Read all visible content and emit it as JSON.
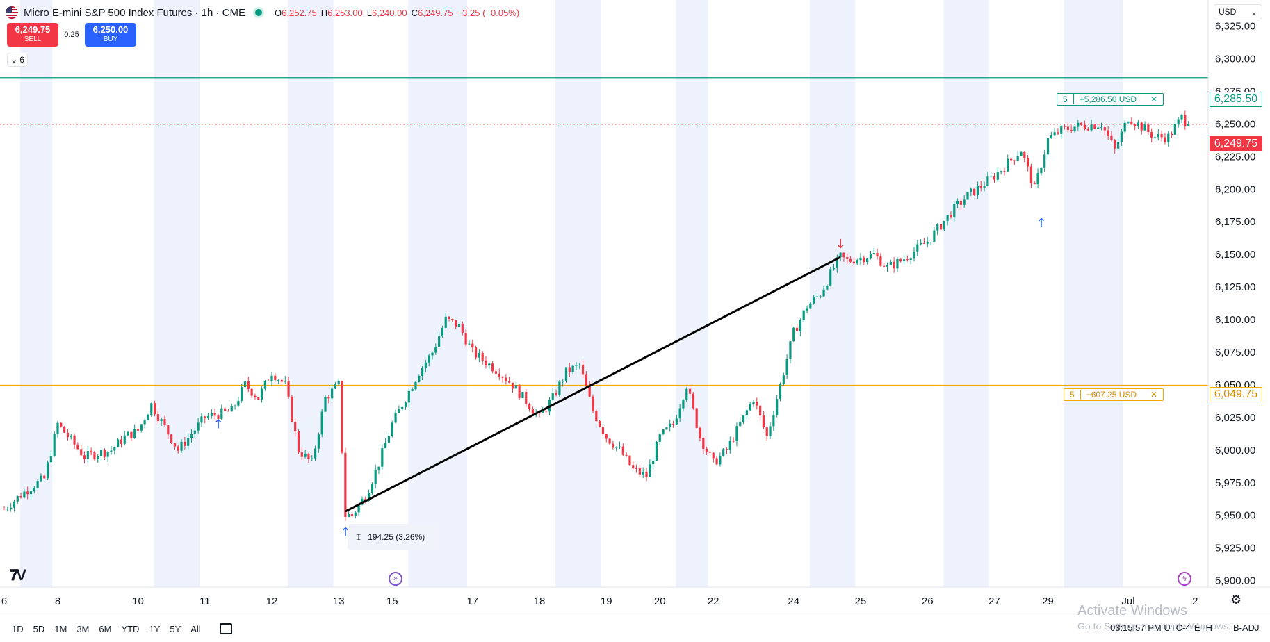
{
  "header": {
    "title": "Micro E-mini S&P 500 Index Futures · 1h · CME",
    "ohlc": [
      {
        "k": "O",
        "v": "6,252.75"
      },
      {
        "k": "H",
        "v": "6,253.00"
      },
      {
        "k": "L",
        "v": "6,240.00"
      },
      {
        "k": "C",
        "v": "6,249.75"
      },
      {
        "k": "",
        "v": "−3.25 (−0.05%)"
      }
    ]
  },
  "trade": {
    "sell_price": "6,249.75",
    "sell_label": "SELL",
    "spread": "0.25",
    "buy_price": "6,250.00",
    "buy_label": "BUY",
    "collapse_count": "6"
  },
  "currency": "USD",
  "orders": {
    "take_profit": {
      "qty": "5",
      "pnl": "+5,286.50 USD",
      "price": "6,285.50",
      "close": "✕"
    },
    "stop_loss": {
      "qty": "5",
      "pnl": "−607.25 USD",
      "price": "6,049.75",
      "close": "✕"
    },
    "last_price": "6,249.75"
  },
  "measure": {
    "text": "194.25 (3.26%)"
  },
  "bottom": {
    "ranges": [
      "1D",
      "5D",
      "1M",
      "3M",
      "6M",
      "YTD",
      "1Y",
      "5Y",
      "All"
    ],
    "clock": "03:15:57 PM UTC-4",
    "eth": "ETH",
    "badj": "B-ADJ"
  },
  "watermark": {
    "line1": "Activate Windows",
    "line2": "Go to Settings to activate Windows."
  },
  "colors": {
    "up": "#089981",
    "down": "#f23645",
    "tp": "#089981",
    "sl": "#f2a900",
    "session": "#eef2fd"
  },
  "chart_data": {
    "type": "candlestick",
    "symbol": "MES",
    "interval": "1h",
    "ylim": [
      5895,
      6345
    ],
    "y_ticks": [
      "6,325.00",
      "6,300.00",
      "6,275.00",
      "6,250.00",
      "6,225.00",
      "6,200.00",
      "6,175.00",
      "6,150.00",
      "6,125.00",
      "6,100.00",
      "6,075.00",
      "6,050.00",
      "6,025.00",
      "6,000.00",
      "5,975.00",
      "5,950.00",
      "5,925.00",
      "5,900.00"
    ],
    "y_tick_values": [
      6325,
      6300,
      6275,
      6250,
      6225,
      6200,
      6175,
      6150,
      6125,
      6100,
      6075,
      6050,
      6025,
      6000,
      5975,
      5950,
      5925,
      5900
    ],
    "x_ticks": [
      "6",
      "8",
      "10",
      "11",
      "12",
      "13",
      "15",
      "17",
      "18",
      "19",
      "20",
      "22",
      "24",
      "25",
      "26",
      "27",
      "29",
      "Jul",
      "2"
    ],
    "x_tick_index": [
      0,
      4,
      10,
      15,
      20,
      25,
      29,
      35,
      40,
      45,
      49,
      53,
      59,
      64,
      69,
      74,
      78,
      84,
      89
    ],
    "close_path": [
      [
        0,
        5955
      ],
      [
        2,
        5972
      ],
      [
        3,
        5978
      ],
      [
        4,
        6020
      ],
      [
        6,
        5995
      ],
      [
        8,
        6000
      ],
      [
        9,
        6010
      ],
      [
        10,
        6015
      ],
      [
        11,
        6035
      ],
      [
        13,
        6000
      ],
      [
        15,
        6025
      ],
      [
        17,
        6030
      ],
      [
        18,
        6050
      ],
      [
        19,
        6040
      ],
      [
        20,
        6060
      ],
      [
        21,
        6050
      ],
      [
        22,
        6000
      ],
      [
        23,
        5990
      ],
      [
        24,
        6040
      ],
      [
        25,
        6050
      ],
      [
        25.5,
        5950
      ],
      [
        26,
        5950
      ],
      [
        27,
        5965
      ],
      [
        28,
        5990
      ],
      [
        29,
        6020
      ],
      [
        30,
        6040
      ],
      [
        31,
        6060
      ],
      [
        32,
        6075
      ],
      [
        33,
        6100
      ],
      [
        34,
        6095
      ],
      [
        35,
        6075
      ],
      [
        37,
        6060
      ],
      [
        38,
        6050
      ],
      [
        40,
        6025
      ],
      [
        41,
        6040
      ],
      [
        42,
        6060
      ],
      [
        43,
        6065
      ],
      [
        44,
        6030
      ],
      [
        45,
        6010
      ],
      [
        46,
        6000
      ],
      [
        47,
        5985
      ],
      [
        48,
        5980
      ],
      [
        49,
        6010
      ],
      [
        50,
        6020
      ],
      [
        51,
        6050
      ],
      [
        52,
        6010
      ],
      [
        53,
        5990
      ],
      [
        54,
        6000
      ],
      [
        55,
        6020
      ],
      [
        56,
        6040
      ],
      [
        57,
        6010
      ],
      [
        58,
        6050
      ],
      [
        59,
        6090
      ],
      [
        60,
        6110
      ],
      [
        61,
        6120
      ],
      [
        62,
        6140
      ],
      [
        62.5,
        6148
      ],
      [
        63,
        6145
      ],
      [
        65,
        6150
      ],
      [
        66,
        6140
      ],
      [
        67,
        6145
      ],
      [
        69,
        6160
      ],
      [
        71,
        6185
      ],
      [
        72,
        6195
      ],
      [
        74,
        6210
      ],
      [
        75,
        6220
      ],
      [
        76,
        6230
      ],
      [
        77,
        6200
      ],
      [
        78,
        6238
      ],
      [
        79,
        6245
      ],
      [
        80,
        6248
      ],
      [
        82,
        6250
      ],
      [
        83,
        6230
      ],
      [
        84,
        6255
      ],
      [
        85,
        6248
      ],
      [
        86,
        6240
      ],
      [
        87,
        6240
      ],
      [
        88,
        6255
      ],
      [
        88.5,
        6249.75
      ]
    ],
    "n_candles": 90,
    "trendline": {
      "from": [
        25.5,
        5953
      ],
      "to": [
        62.5,
        6148
      ]
    },
    "measure_delta": "194.25 (3.26%)",
    "signals": [
      {
        "type": "buy",
        "i": 16,
        "price": 6020
      },
      {
        "type": "buy",
        "i": 25.5,
        "price": 5937
      },
      {
        "type": "sell",
        "i": 62.5,
        "price": 6158
      },
      {
        "type": "buy",
        "i": 77.5,
        "price": 6174
      }
    ],
    "order_lines": [
      {
        "name": "take-profit",
        "price": 6285.5
      },
      {
        "name": "stop-loss",
        "price": 6049.75
      }
    ],
    "last": 6249.75
  }
}
